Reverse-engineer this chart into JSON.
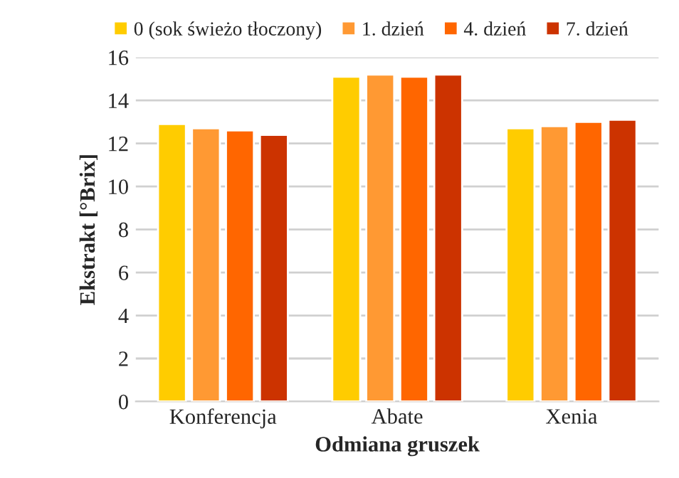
{
  "chart_data": {
    "type": "bar",
    "xlabel": "Odmiana gruszek",
    "ylabel": "Ekstrakt [°Brix]",
    "categories": [
      "Konferencja",
      "Abate",
      "Xenia"
    ],
    "series": [
      {
        "name": "0 (sok świeżo tłoczony)",
        "color": "#ffcc00",
        "values": [
          12.9,
          15.1,
          12.7
        ]
      },
      {
        "name": "1. dzień",
        "color": "#ff9933",
        "values": [
          12.7,
          15.2,
          12.8
        ]
      },
      {
        "name": "4. dzień",
        "color": "#ff6600",
        "values": [
          12.6,
          15.1,
          13.0
        ]
      },
      {
        "name": "7. dzień",
        "color": "#cc3300",
        "values": [
          12.4,
          15.2,
          13.1
        ]
      }
    ],
    "ylim": [
      0,
      16
    ],
    "yticks": [
      0,
      2,
      4,
      6,
      8,
      10,
      12,
      14,
      16
    ],
    "grid": "y",
    "legend": "top"
  }
}
